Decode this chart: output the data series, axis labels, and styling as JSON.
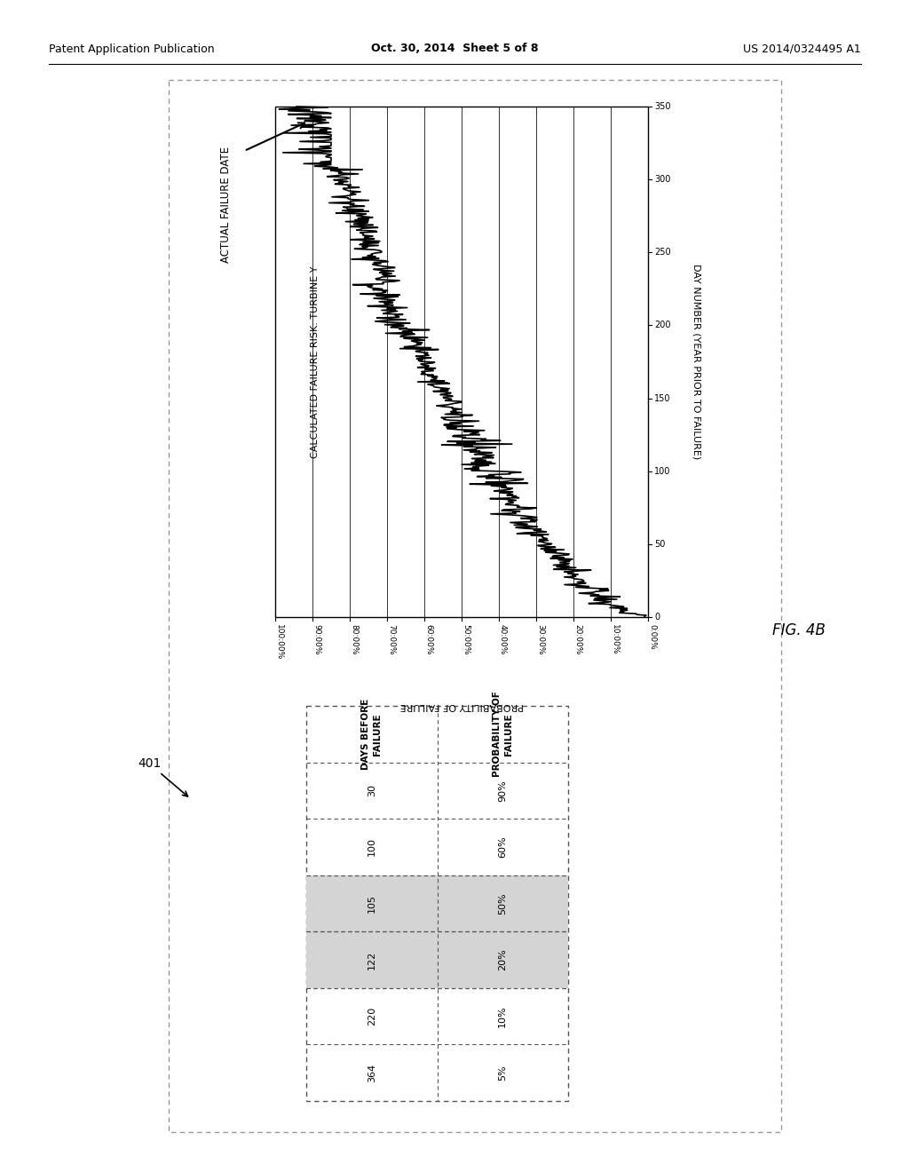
{
  "page_header_left": "Patent Application Publication",
  "page_header_center": "Oct. 30, 2014  Sheet 5 of 8",
  "page_header_right": "US 2014/0324495 A1",
  "fig_label": "FIG. 4B",
  "ref_label": "401",
  "chart_title": "CALCULATED FAILURE RISK: TURBINE Y",
  "chart_xlabel_rotated": "DAY NUMBER (YEAR PRIOR TO FAILURE)",
  "chart_ylabel_rotated": "PROBABILITY OF FAILURE",
  "actual_failure_label": "ACTUAL FAILURE DATE",
  "table_col1_header": "DAYS BEFORE\nFAILURE",
  "table_col2_header": "PROBABILITY OF\nFAILURE",
  "table_data": [
    [
      "30",
      "90%"
    ],
    [
      "100",
      "60%"
    ],
    [
      "105",
      "50%"
    ],
    [
      "122",
      "20%"
    ],
    [
      "220",
      "10%"
    ],
    [
      "364",
      "5%"
    ]
  ],
  "table_shaded_rows": [
    2,
    3
  ],
  "background_color": "#ffffff",
  "text_color": "#000000"
}
